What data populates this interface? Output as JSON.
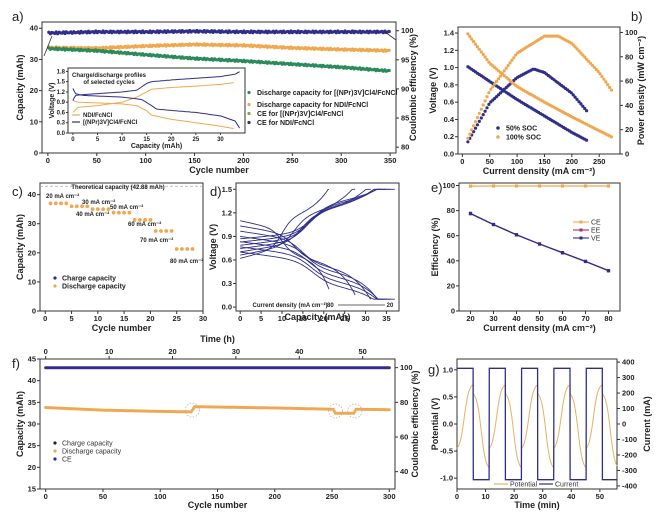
{
  "colors": {
    "navy": "#2e2e8a",
    "orange": "#f0a850",
    "green": "#2a8a5a",
    "gray": "#aaaaaa"
  },
  "chart_data": [
    {
      "id": "a",
      "panel_label": "a)",
      "type": "scatter",
      "xlabel": "Cycle number",
      "ylabel": "Capacity (mAh)",
      "y2label": "Coulombic efficiency (%)",
      "xlim": [
        0,
        350
      ],
      "ylim": [
        0,
        40
      ],
      "y2lim": [
        80,
        100
      ],
      "xticks": [
        0,
        50,
        100,
        150,
        200,
        250,
        300,
        350
      ],
      "yticks": [
        0,
        10,
        20,
        30,
        40
      ],
      "y2ticks": [
        80,
        85,
        90,
        95,
        100
      ],
      "legend_position": "center-right",
      "series": [
        {
          "name": "Discharge capacity for [(NPr)3V]Cl4/FcNCl",
          "color": "#2a8a5a",
          "axis": "left",
          "x": [
            0,
            50,
            100,
            150,
            200,
            250,
            300,
            350
          ],
          "y": [
            33.5,
            32.8,
            31.5,
            30.3,
            29.5,
            28.5,
            27.5,
            26.3
          ]
        },
        {
          "name": "Discharge capacity for NDI/FcNCl",
          "color": "#f0a850",
          "axis": "left",
          "x": [
            0,
            50,
            100,
            150,
            200,
            250,
            300,
            350
          ],
          "y": [
            33.8,
            33.6,
            34.3,
            34.8,
            34.5,
            33.7,
            33.2,
            32.8
          ]
        },
        {
          "name": "CE for [(NPr)3V]Cl4/FcNCl",
          "color": "#8aa040",
          "axis": "right",
          "x": [
            0,
            350
          ],
          "y": [
            99.8,
            99.8
          ]
        },
        {
          "name": "CE for NDI/FcNCl",
          "color": "#2e2e8a",
          "axis": "right",
          "x": [
            0,
            50,
            100,
            150,
            200,
            250,
            300,
            350
          ],
          "y": [
            99.6,
            99.8,
            99.8,
            99.9,
            99.8,
            99.8,
            99.8,
            99.8
          ]
        }
      ],
      "inset": {
        "title": "Charge/discharge profiles of selected cycles",
        "xlabel": "Capacity (mAh)",
        "ylabel": "Voltage (V)",
        "xlim": [
          0,
          34
        ],
        "ylim": [
          0,
          1.8
        ],
        "xticks": [
          0,
          5,
          10,
          15,
          20,
          25,
          30
        ],
        "yticks": [
          0.0,
          0.3,
          0.6,
          0.9,
          1.2,
          1.5,
          1.8
        ],
        "series": [
          {
            "name": "NDI/FcNCl",
            "color": "#f0a850",
            "charge": {
              "x": [
                0,
                1,
                5,
                10,
                13,
                15,
                16,
                20,
                25,
                30,
                33
              ],
              "y": [
                0.6,
                0.75,
                0.8,
                0.9,
                1.05,
                1.2,
                1.28,
                1.33,
                1.37,
                1.42,
                1.48
              ]
            },
            "discharge": {
              "x": [
                0,
                1,
                5,
                10,
                13,
                15,
                16,
                20,
                25,
                30,
                33
              ],
              "y": [
                0.95,
                0.9,
                0.88,
                0.85,
                0.8,
                0.65,
                0.52,
                0.4,
                0.3,
                0.2,
                0.12
              ]
            }
          },
          {
            "name": "[(NPr)3V]Cl4/FcNCl",
            "color": "#2e2e8a",
            "charge": {
              "x": [
                0,
                0.5,
                2,
                5,
                10,
                13,
                15,
                16,
                20,
                25,
                30,
                33,
                34
              ],
              "y": [
                0.95,
                1.1,
                1.12,
                1.15,
                1.2,
                1.25,
                1.45,
                1.5,
                1.55,
                1.6,
                1.65,
                1.72,
                1.8
              ]
            },
            "discharge": {
              "x": [
                0,
                0.5,
                2,
                5,
                10,
                14,
                16,
                17,
                20,
                25,
                30,
                33,
                34
              ],
              "y": [
                1.3,
                1.15,
                1.1,
                1.08,
                1.05,
                0.98,
                0.8,
                0.7,
                0.66,
                0.6,
                0.5,
                0.35,
                0.12
              ]
            }
          }
        ]
      }
    },
    {
      "id": "b",
      "panel_label": "b)",
      "type": "scatter",
      "xlabel": "Current density (mA cm⁻²)",
      "ylabel": "Voltage (V)",
      "y2label": "Power density (mW cm⁻²)",
      "xlim": [
        0,
        280
      ],
      "ylim": [
        0,
        1.45
      ],
      "y2lim": [
        0,
        103
      ],
      "xticks": [
        0,
        50,
        100,
        150,
        200,
        250
      ],
      "yticks": [
        0.0,
        0.2,
        0.4,
        0.6,
        0.8,
        1.0,
        1.2,
        1.4
      ],
      "y2ticks": [
        0,
        20,
        40,
        60,
        80,
        100
      ],
      "legend_position": "bottom-center",
      "series": [
        {
          "name": "50%  SOC",
          "color": "#2e2e8a",
          "voltage": {
            "x": [
              10,
              50,
              100,
              150,
              200,
              230
            ],
            "y": [
              1.01,
              0.84,
              0.63,
              0.44,
              0.25,
              0.15
            ]
          },
          "power": {
            "x": [
              10,
              50,
              100,
              130,
              150,
              200,
              230
            ],
            "y": [
              10,
              42,
              63,
              70,
              67,
              50,
              34
            ]
          }
        },
        {
          "name": "100% SOC",
          "color": "#f0a850",
          "voltage": {
            "x": [
              10,
              50,
              100,
              150,
              200,
              250,
              275
            ],
            "y": [
              1.39,
              1.05,
              0.78,
              0.6,
              0.43,
              0.27,
              0.19
            ]
          },
          "power": {
            "x": [
              10,
              50,
              100,
              150,
              175,
              200,
              250,
              275
            ],
            "y": [
              13,
              52,
              83,
              97,
              97,
              91,
              67,
              51
            ]
          }
        }
      ]
    },
    {
      "id": "c",
      "panel_label": "c)",
      "type": "scatter",
      "xlabel": "Cycle number",
      "ylabel": "Capacity (mAh)",
      "xlim": [
        0,
        30
      ],
      "ylim": [
        0,
        44
      ],
      "xticks": [
        0,
        5,
        10,
        15,
        20,
        25,
        30
      ],
      "yticks": [
        0,
        10,
        20,
        30,
        40
      ],
      "reference_line": {
        "label": "Theoretical capacity (42.88 mAh)",
        "y": 42.88
      },
      "legend_position": "bottom-left",
      "legend": [
        "Charge capacity",
        "Discharge capacity"
      ],
      "annotations": [
        "20 mA cm⁻²",
        "30 mA cm⁻²",
        "40 mA cm⁻²",
        "50 mA cm⁻²",
        "60 mA cm⁻²",
        "70 mA cm⁻²",
        "80 mA cm⁻²"
      ],
      "series": [
        {
          "name": "Discharge capacity",
          "color": "#f0a850",
          "x": [
            1,
            2,
            3,
            4,
            5,
            6,
            7,
            8,
            9,
            10,
            11,
            12,
            13,
            14,
            15,
            16,
            17,
            18,
            19,
            20,
            21,
            22,
            23,
            24,
            25,
            26,
            27,
            28
          ],
          "y": [
            37,
            37,
            37,
            37,
            36,
            36,
            36,
            36,
            35,
            35,
            35,
            35,
            33.8,
            33.8,
            33.8,
            33.8,
            31.3,
            31.3,
            31.3,
            31.3,
            27.5,
            27.5,
            27.5,
            27.5,
            21.3,
            21.3,
            21.3,
            21.3
          ]
        }
      ]
    },
    {
      "id": "d",
      "panel_label": "d)",
      "type": "line",
      "xlabel": "Capacity (mAh)",
      "ylabel": "Voltage (V)",
      "xlim": [
        -1,
        38
      ],
      "ylim": [
        -0.05,
        1.58
      ],
      "xticks": [
        0,
        5,
        10,
        15,
        20,
        25,
        30,
        35
      ],
      "yticks": [
        0.0,
        0.3,
        0.6,
        0.9,
        1.2,
        1.5
      ],
      "annotation": {
        "text": "Current density (mA cm⁻²)",
        "from": "80",
        "to": "20"
      },
      "series_color": "#2e2e8a",
      "curves": [
        {
          "current_density": 80,
          "capacity": 21.3
        },
        {
          "current_density": 70,
          "capacity": 27.5
        },
        {
          "current_density": 60,
          "capacity": 31.3
        },
        {
          "current_density": 50,
          "capacity": 33.8
        },
        {
          "current_density": 40,
          "capacity": 35.0
        },
        {
          "current_density": 30,
          "capacity": 36.0
        },
        {
          "current_density": 20,
          "capacity": 37.0
        }
      ]
    },
    {
      "id": "e",
      "panel_label": "e)",
      "type": "line",
      "xlabel": "Current density (mA cm⁻²)",
      "ylabel": "Efficiency (%)",
      "xlim": [
        15,
        85
      ],
      "ylim": [
        0,
        102
      ],
      "xticks": [
        20,
        30,
        40,
        50,
        60,
        70,
        80
      ],
      "yticks": [
        0,
        20,
        40,
        60,
        80,
        100
      ],
      "legend_position": "right",
      "categories": [
        20,
        30,
        40,
        50,
        60,
        70,
        80
      ],
      "series": [
        {
          "name": "CE",
          "color": "#f0a850",
          "values": [
            99.5,
            99.6,
            99.6,
            99.6,
            99.6,
            99.6,
            99.6
          ]
        },
        {
          "name": "EE",
          "color": "#a0306a",
          "values": [
            77.5,
            68.8,
            60.6,
            53.3,
            46.3,
            39.4,
            32.0
          ]
        },
        {
          "name": "VE",
          "color": "#2e2e8a",
          "values": [
            77.8,
            69.0,
            60.8,
            53.5,
            46.5,
            39.6,
            32.2
          ]
        }
      ]
    },
    {
      "id": "f",
      "panel_label": "f)",
      "type": "scatter",
      "xlabel": "Cycle number",
      "x2label": "Time (h)",
      "ylabel": "Capacity (mAh)",
      "y2label": "Coulombic efficiency (%)",
      "xlim": [
        -5,
        305
      ],
      "x2lim": [
        -0.9,
        55.1
      ],
      "ylim": [
        15,
        45
      ],
      "y2lim": [
        30,
        105
      ],
      "xticks": [
        0,
        50,
        100,
        150,
        200,
        250,
        300
      ],
      "x2ticks": [
        0,
        10,
        20,
        30,
        40,
        50
      ],
      "yticks": [
        15,
        20,
        25,
        30,
        35,
        40,
        45
      ],
      "y2ticks": [
        40,
        60,
        80,
        100
      ],
      "legend_position": "center-left",
      "legend": [
        "Charge capacity",
        "Discharge capacity",
        "CE"
      ],
      "series": [
        {
          "name": "Discharge capacity",
          "color": "#f0a850",
          "x": [
            0,
            50,
            100,
            127,
            130,
            200,
            251,
            253,
            269,
            271,
            300
          ],
          "y": [
            33.8,
            33.2,
            32.9,
            32.8,
            34.0,
            33.7,
            33.4,
            32.5,
            32.5,
            33.4,
            33.3
          ]
        },
        {
          "name": "CE",
          "color": "#2e2e8a",
          "axis": "right",
          "x": [
            0,
            300
          ],
          "y": [
            100,
            100
          ]
        }
      ]
    },
    {
      "id": "g",
      "panel_label": "g)",
      "type": "line",
      "xlabel": "Time (min)",
      "ylabel": "Potential (V)",
      "y2label": "Current (mA)",
      "xlim": [
        0,
        56
      ],
      "ylim": [
        -1.2,
        1.2
      ],
      "y2lim": [
        -420,
        420
      ],
      "xticks": [
        0,
        10,
        20,
        30,
        40,
        50
      ],
      "yticks": [
        -1.0,
        -0.5,
        0.0,
        0.5,
        1.0
      ],
      "y2ticks": [
        -400,
        -300,
        -200,
        -100,
        0,
        100,
        200,
        300,
        400
      ],
      "legend_position": "bottom-center",
      "period_min": 11.3,
      "current_amplitude_ma": 360,
      "series": [
        {
          "name": "Potential",
          "color": "#e8b060"
        },
        {
          "name": "Current",
          "color": "#2e2e8a"
        }
      ]
    }
  ]
}
